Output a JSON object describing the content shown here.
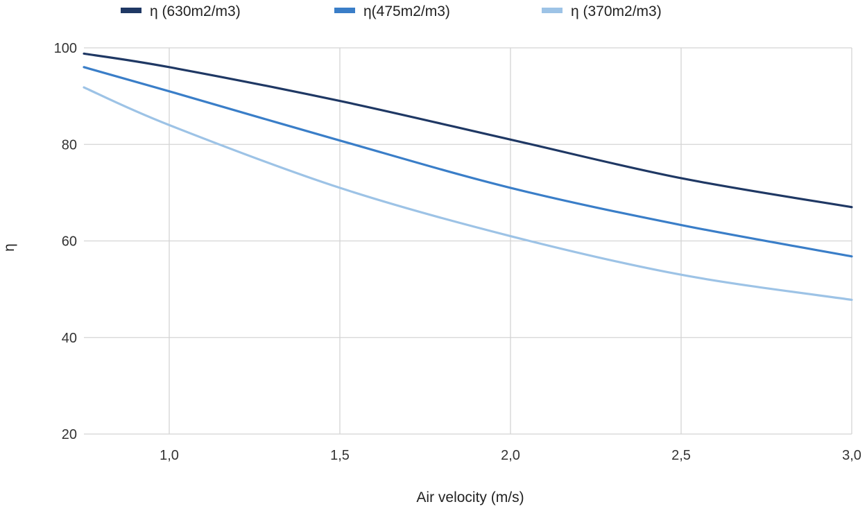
{
  "chart_data": {
    "type": "line",
    "title": "",
    "xlabel": "Air velocity (m/s)",
    "ylabel": "η",
    "xlim": [
      0.75,
      3.0
    ],
    "ylim": [
      20,
      100
    ],
    "x": [
      0.75,
      1.0,
      1.5,
      2.0,
      2.5,
      3.0
    ],
    "xticks": [
      1.0,
      1.5,
      2.0,
      2.5,
      3.0
    ],
    "xtick_labels": [
      "1,0",
      "1,5",
      "2,0",
      "2,5",
      "3,0"
    ],
    "yticks": [
      20,
      40,
      60,
      80,
      100
    ],
    "ytick_labels": [
      "20",
      "40",
      "60",
      "80",
      "100"
    ],
    "grid": true,
    "legend_position": "top",
    "series": [
      {
        "name": "η (630m2/m3)",
        "color": "#1f3864",
        "values": [
          98.8,
          96,
          89,
          81,
          73,
          67
        ]
      },
      {
        "name": "η(475m2/m3)",
        "color": "#3a7ec8",
        "values": [
          96,
          91,
          80.8,
          71,
          63.3,
          56.8
        ]
      },
      {
        "name": "η (370m2/m3)",
        "color": "#9dc3e6",
        "values": [
          91.8,
          84,
          71,
          61,
          53,
          47.8
        ]
      }
    ]
  }
}
